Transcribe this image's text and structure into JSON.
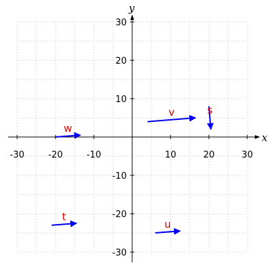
{
  "chart_data": {
    "type": "vector-field",
    "xlabel": "x",
    "ylabel": "y",
    "xlim": [
      -30,
      30
    ],
    "ylim": [
      -30,
      30
    ],
    "x_ticks": [
      -30,
      -20,
      -10,
      10,
      20,
      30
    ],
    "y_ticks": [
      -30,
      -20,
      -10,
      10,
      20,
      30
    ],
    "x_tick_labels": [
      "-30",
      "-20",
      "-10",
      "10",
      "20",
      "30"
    ],
    "y_tick_labels": [
      "-30",
      "-20",
      "-10",
      "10",
      "20",
      "30"
    ],
    "grid": true,
    "grid_step": 5,
    "vectors": [
      {
        "name": "v",
        "start": [
          4,
          4
        ],
        "end": [
          16.5,
          5
        ]
      },
      {
        "name": "s",
        "start": [
          20,
          8
        ],
        "end": [
          20.5,
          2
        ]
      },
      {
        "name": "w",
        "start": [
          -20,
          0
        ],
        "end": [
          -13.5,
          0.5
        ]
      },
      {
        "name": "t",
        "start": [
          -21,
          -23
        ],
        "end": [
          -14.5,
          -22.5
        ]
      },
      {
        "name": "u",
        "start": [
          6,
          -25
        ],
        "end": [
          12.5,
          -24.5
        ]
      }
    ],
    "colors": {
      "vector": "#0000ee",
      "label": "#dd0000",
      "grid": "#c0c0c0",
      "axis": "#000000"
    }
  }
}
